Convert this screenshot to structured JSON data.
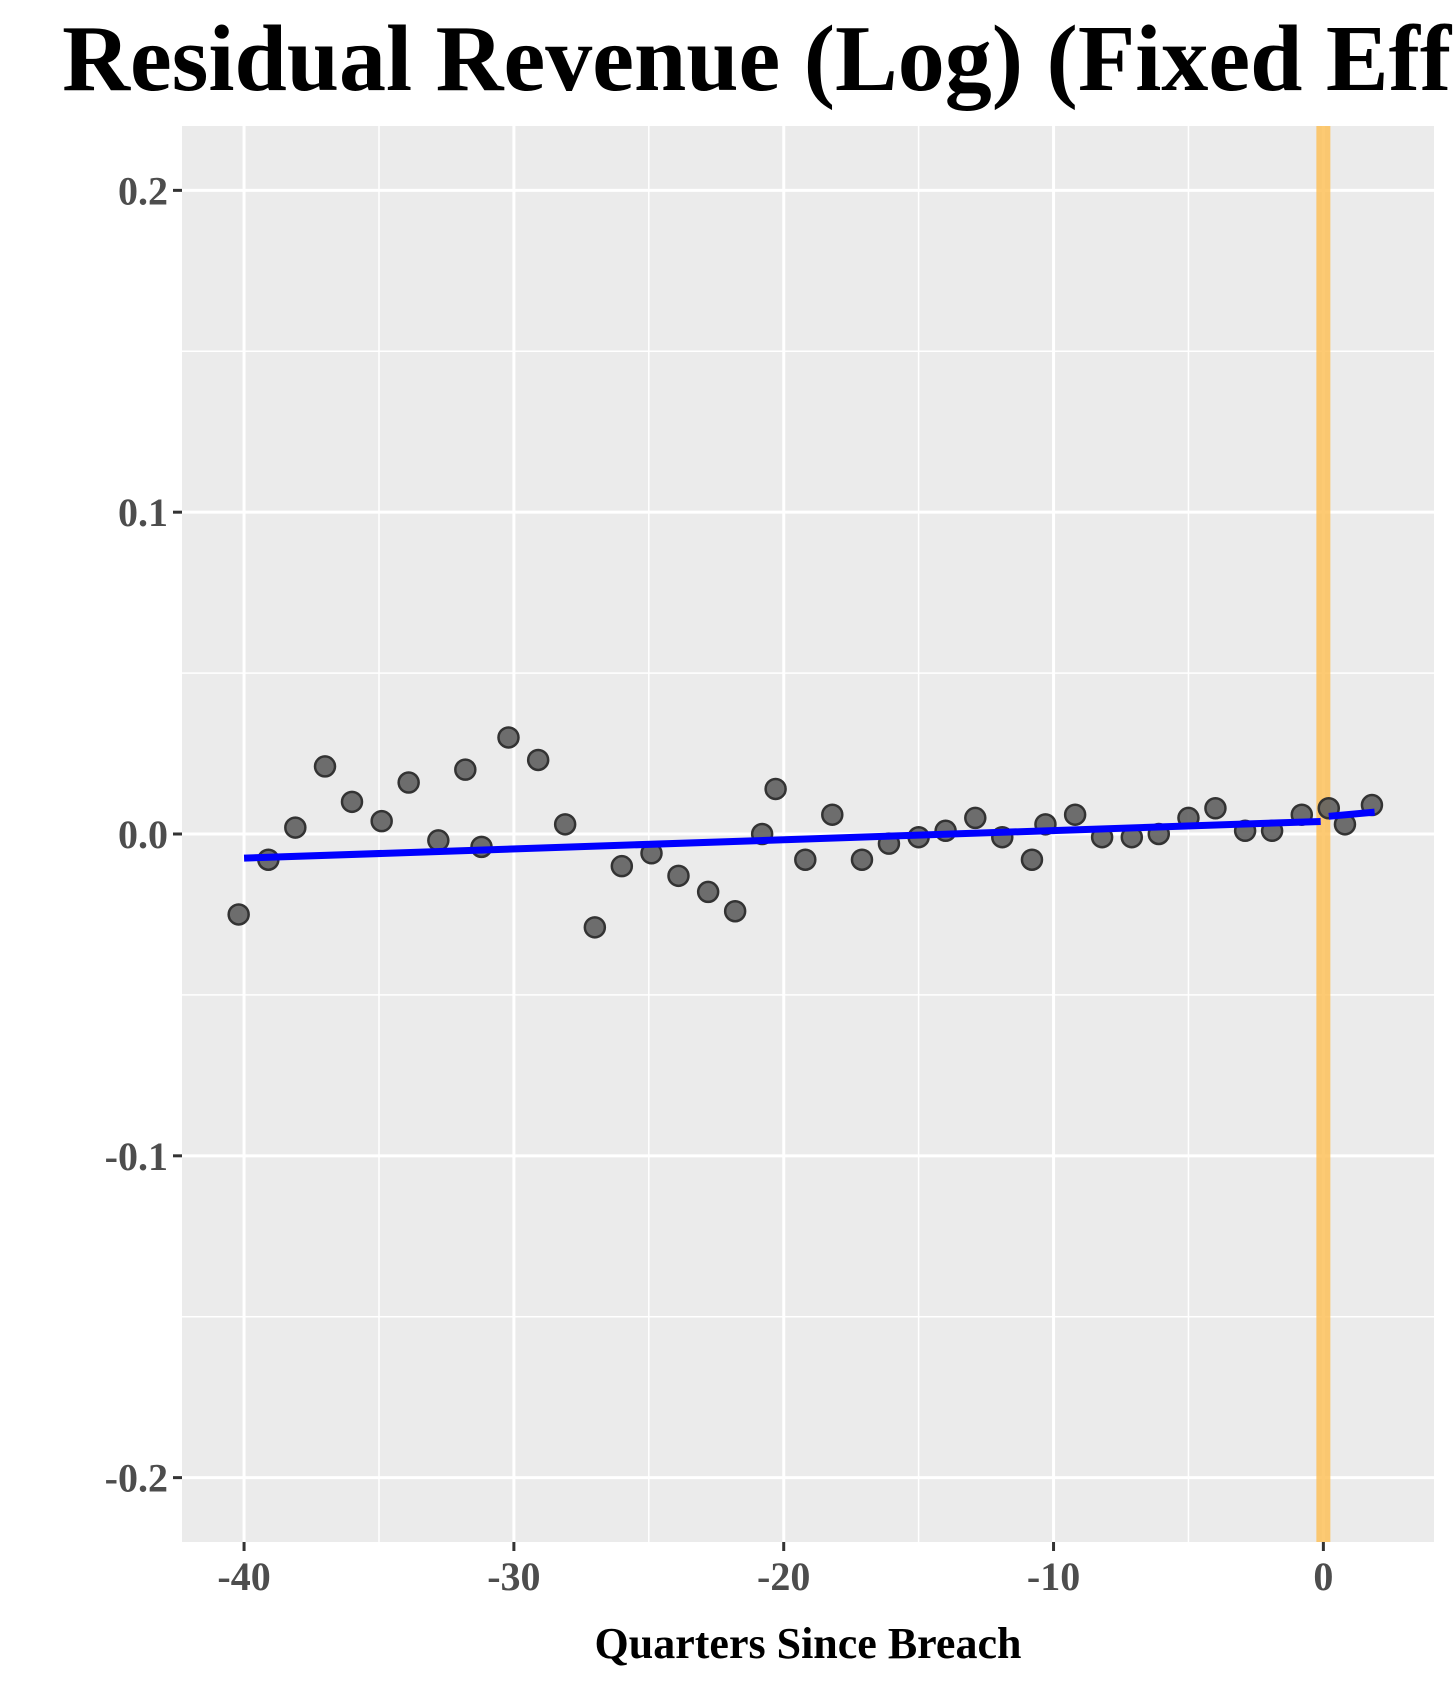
{
  "chart_data": {
    "type": "scatter",
    "title": "Residual Revenue (Log) (Fixed Effects)",
    "xlabel": "Quarters Since Breach",
    "ylabel": "",
    "xlim": [
      -42.3,
      4.1
    ],
    "ylim": [
      -0.22,
      0.22
    ],
    "x_ticks": [
      -40,
      -30,
      -20,
      -10,
      0
    ],
    "x_tick_labels": [
      "-40",
      "-30",
      "-20",
      "-10",
      "0"
    ],
    "y_ticks": [
      0.2,
      0.1,
      0.0,
      -0.1,
      -0.2
    ],
    "y_tick_labels": [
      "0.2",
      "0.1",
      "0.0",
      "-0.1",
      "-0.2"
    ],
    "grid": true,
    "colors": {
      "panel": "#ebebeb",
      "grid": "#ffffff",
      "points_fill": "#5f5f5f",
      "points_stroke": "#333333",
      "fit_line": "#0000ff",
      "event_band": "#fdc15a"
    },
    "event_marker": {
      "x": 0
    },
    "points": {
      "x": [
        -40.2,
        -39.1,
        -38.1,
        -37.0,
        -36.0,
        -34.9,
        -33.9,
        -32.8,
        -31.8,
        -31.2,
        -30.2,
        -29.1,
        -28.1,
        -27.0,
        -26.0,
        -24.9,
        -23.9,
        -22.8,
        -21.8,
        -20.8,
        -20.3,
        -19.2,
        -18.2,
        -17.1,
        -16.1,
        -15.0,
        -14.0,
        -12.9,
        -11.9,
        -10.8,
        -10.3,
        -9.2,
        -8.2,
        -7.1,
        -6.1,
        -5.0,
        -4.0,
        -2.9,
        -1.9,
        -0.8,
        0.2,
        0.8,
        1.8
      ],
      "y": [
        -0.025,
        -0.008,
        0.002,
        0.021,
        0.01,
        0.004,
        0.016,
        -0.002,
        0.02,
        -0.004,
        0.03,
        0.023,
        0.003,
        -0.029,
        -0.01,
        -0.006,
        -0.013,
        -0.018,
        -0.024,
        0.0,
        0.014,
        -0.008,
        0.006,
        -0.008,
        -0.003,
        -0.001,
        0.001,
        0.005,
        -0.001,
        -0.008,
        0.003,
        0.006,
        -0.001,
        -0.001,
        0.0,
        0.005,
        0.008,
        0.001,
        0.001,
        0.006,
        0.008,
        0.003,
        0.009
      ]
    },
    "fit_segments": [
      {
        "x": [
          -40,
          -0.1
        ],
        "y": [
          -0.0075,
          0.0039
        ]
      },
      {
        "x": [
          0.2,
          1.9
        ],
        "y": [
          0.0055,
          0.0068
        ]
      }
    ]
  }
}
